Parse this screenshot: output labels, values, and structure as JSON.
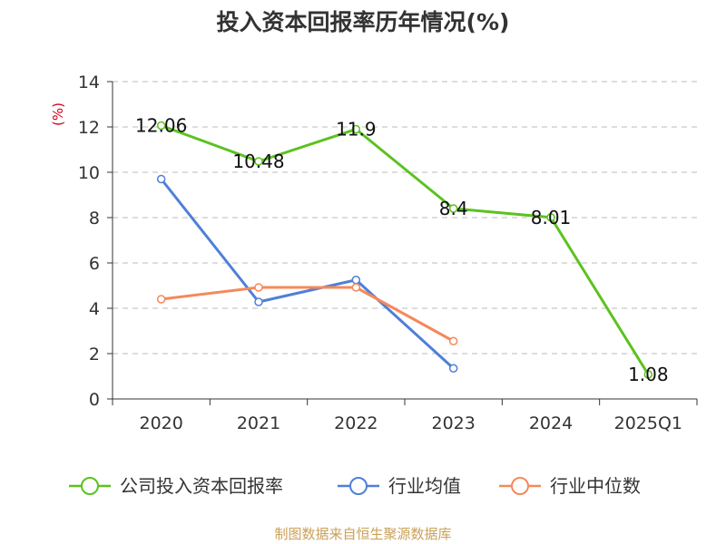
{
  "chart_data": {
    "type": "line",
    "title": "投入资本回报率历年情况(%)",
    "ylabel": "(%)",
    "ylim": [
      0,
      14
    ],
    "yticks": [
      0,
      2,
      4,
      6,
      8,
      10,
      12,
      14
    ],
    "grid": true,
    "legend_position": "bottom",
    "categories": [
      "2020",
      "2021",
      "2022",
      "2023",
      "2024",
      "2025Q1"
    ],
    "series": [
      {
        "name": "公司投入资本回报率",
        "color": "#5bc21f",
        "values": [
          12.06,
          10.48,
          11.9,
          8.4,
          8.01,
          1.08
        ],
        "labels": [
          "12.06",
          "10.48",
          "11.9",
          "8.4",
          "8.01",
          "1.08"
        ]
      },
      {
        "name": "行业均值",
        "color": "#4f7fd8",
        "values": [
          9.7,
          4.28,
          5.25,
          1.35,
          null,
          null
        ]
      },
      {
        "name": "行业中位数",
        "color": "#f5895a",
        "values": [
          4.4,
          4.92,
          4.92,
          2.55,
          null,
          null
        ]
      }
    ],
    "source": "制图数据来自恒生聚源数据库"
  }
}
